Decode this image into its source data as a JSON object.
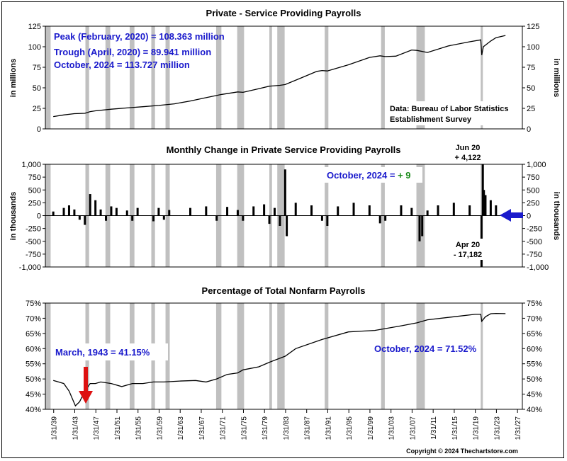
{
  "colors": {
    "recession": "#c0c0c0",
    "line": "#000000",
    "annotation": "#1a1acc",
    "arrow_red": "#dd1111",
    "arrow_blue": "#1a1acc",
    "positive": "#1a8a1a"
  },
  "x_axis": {
    "ticks": [
      "1/31/39",
      "1/31/43",
      "1/31/47",
      "1/31/51",
      "1/31/55",
      "1/31/59",
      "1/31/63",
      "1/31/67",
      "1/31/71",
      "1/31/75",
      "1/31/79",
      "1/31/83",
      "1/31/87",
      "1/31/91",
      "1/31/95",
      "1/31/99",
      "1/31/03",
      "1/31/07",
      "1/31/11",
      "1/31/15",
      "1/31/19",
      "1/31/23",
      "1/31/27"
    ],
    "range": [
      1937.5,
      2028
    ]
  },
  "recessions": [
    [
      1937.5,
      1938.5
    ],
    [
      1945.1,
      1945.8
    ],
    [
      1948.9,
      1949.8
    ],
    [
      1953.5,
      1954.4
    ],
    [
      1957.6,
      1958.3
    ],
    [
      1960.3,
      1961.1
    ],
    [
      1969.9,
      1970.9
    ],
    [
      1973.9,
      1975.2
    ],
    [
      1980.0,
      1980.5
    ],
    [
      1981.5,
      1982.9
    ],
    [
      1990.5,
      1991.2
    ],
    [
      2001.2,
      2001.9
    ],
    [
      2007.9,
      2009.5
    ],
    [
      2020.1,
      2020.3
    ]
  ],
  "copyright": "Copyright © 2024 Thechartstore.com",
  "chart_data": [
    {
      "type": "line",
      "title": "Private - Service Providing Payrolls",
      "ylabel_left": "in millions",
      "ylabel_right": "in millions",
      "ylim": [
        0,
        125
      ],
      "yticks": [
        "0",
        "25",
        "50",
        "75",
        "100",
        "125"
      ],
      "annotations": {
        "peak": "Peak (February, 2020) = 108.363 million",
        "trough": "Trough (April, 2020) = 89.941 million",
        "latest": "October, 2024 = 113.727 million",
        "source_line1": "Data:  Bureau of Labor Statistics",
        "source_line2": "Establishment Survey"
      },
      "x": [
        1939,
        1941,
        1943,
        1945,
        1946,
        1947,
        1950,
        1953,
        1956,
        1959,
        1962,
        1965,
        1968,
        1971,
        1974,
        1975,
        1978,
        1980,
        1982,
        1983,
        1986,
        1989,
        1990,
        1991,
        1995,
        1999,
        2001,
        2002,
        2004,
        2007,
        2008,
        2010,
        2014,
        2018,
        2020.1,
        2020.3,
        2020.6,
        2022,
        2023,
        2024.8
      ],
      "y": [
        15,
        17,
        18.5,
        19,
        21,
        22,
        24,
        25.5,
        27,
        28.5,
        30.5,
        34,
        38,
        42,
        45,
        44.5,
        49,
        52,
        53,
        54,
        62,
        70,
        71,
        70.5,
        78,
        87,
        89,
        88,
        88.5,
        96,
        95.5,
        93,
        101,
        106,
        108.4,
        89.9,
        100,
        107,
        111,
        113.7
      ]
    },
    {
      "type": "bar",
      "title": "Monthly Change in Private Service Providing Payrolls",
      "ylabel_left": "in thousands",
      "ylabel_right": "in thousands",
      "ylim": [
        -1000,
        1000
      ],
      "yticks": [
        "1,000",
        "750",
        "500",
        "250",
        "0",
        "-250",
        "-500",
        "-750",
        "-1,000"
      ],
      "annotations": {
        "latest_prefix": "October, 2024 = ",
        "latest_value": "+ 9",
        "max_label_1": "Jun 20",
        "max_label_2": "+ 4,122",
        "min_label_1": "Apr 20",
        "min_label_2": "- 17,182"
      },
      "x": [
        1939,
        1941,
        1942,
        1943,
        1944,
        1945,
        1946,
        1947,
        1948,
        1949,
        1950,
        1951,
        1953,
        1954,
        1955,
        1958,
        1959,
        1960,
        1961,
        1965,
        1968,
        1970,
        1972,
        1974,
        1975,
        1977,
        1979,
        1980,
        1981,
        1982,
        1983,
        1983.3,
        1985,
        1988,
        1990,
        1991,
        1993,
        1996,
        1999,
        2001,
        2002,
        2005,
        2007,
        2008.5,
        2009,
        2010,
        2012,
        2015,
        2018,
        2020.25,
        2020.5,
        2020.7,
        2021,
        2022,
        2023,
        2024.8
      ],
      "y": [
        80,
        150,
        200,
        120,
        -80,
        -180,
        420,
        300,
        120,
        -100,
        180,
        150,
        100,
        -100,
        150,
        -110,
        150,
        -80,
        110,
        150,
        180,
        -100,
        170,
        110,
        -100,
        180,
        220,
        -160,
        150,
        -200,
        900,
        -400,
        250,
        200,
        -100,
        -200,
        180,
        250,
        200,
        -150,
        -100,
        200,
        150,
        -500,
        -400,
        100,
        200,
        250,
        200,
        -1000,
        1000,
        500,
        400,
        300,
        200,
        9
      ]
    },
    {
      "type": "line",
      "title": "Percentage of Total Nonfarm Payrolls",
      "ylim": [
        40,
        75
      ],
      "yticks": [
        "75%",
        "70%",
        "65%",
        "60%",
        "55%",
        "50%",
        "45%",
        "40%"
      ],
      "annotations": {
        "low": "March, 1943 = 41.15%",
        "latest": "October, 2024 = 71.52%"
      },
      "x": [
        1939,
        1940,
        1941,
        1942,
        1943.2,
        1944,
        1945,
        1946,
        1947,
        1948,
        1950,
        1952,
        1954,
        1956,
        1958,
        1960,
        1963,
        1966,
        1968,
        1970,
        1972,
        1974,
        1975,
        1978,
        1980,
        1983,
        1985,
        1990,
        1995,
        2000,
        2005,
        2008,
        2010,
        2015,
        2019,
        2020.1,
        2020.3,
        2021,
        2022,
        2023,
        2024.8
      ],
      "y": [
        49.5,
        49,
        48.5,
        46,
        41.15,
        42.5,
        46,
        48.5,
        48.5,
        49,
        48.5,
        47.5,
        48.5,
        48.5,
        49,
        49,
        49.3,
        49.5,
        49,
        50,
        51.5,
        52,
        53,
        54,
        55.5,
        57.5,
        60,
        63,
        65.5,
        66,
        67.5,
        68.5,
        69.5,
        70.5,
        71.3,
        71.3,
        69,
        70.5,
        71.5,
        71.6,
        71.52
      ]
    }
  ]
}
